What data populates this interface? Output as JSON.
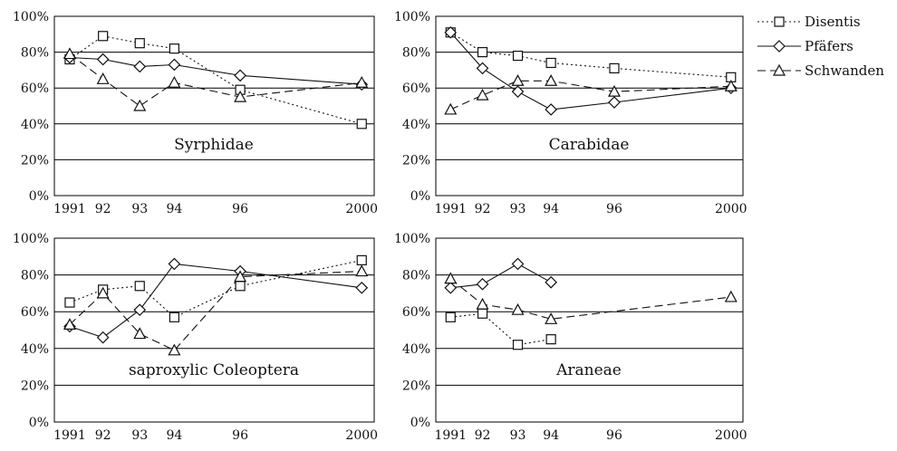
{
  "chart_data": [
    {
      "type": "line",
      "title": "Syrphidae",
      "x": [
        "1991",
        "92",
        "93",
        "94",
        "96",
        "2000"
      ],
      "ylim": [
        0,
        100
      ],
      "yticks": [
        "0%",
        "20%",
        "40%",
        "60%",
        "80%",
        "100%"
      ],
      "grid": true,
      "series": [
        {
          "name": "Disentis",
          "values": [
            76,
            89,
            85,
            82,
            59,
            40
          ]
        },
        {
          "name": "Pfäfers",
          "values": [
            77,
            76,
            72,
            73,
            67,
            62
          ]
        },
        {
          "name": "Schwanden",
          "values": [
            79,
            65,
            50,
            63,
            55,
            63
          ]
        }
      ]
    },
    {
      "type": "line",
      "title": "Carabidae",
      "x": [
        "1991",
        "92",
        "93",
        "94",
        "96",
        "2000"
      ],
      "ylim": [
        0,
        100
      ],
      "yticks": [
        "0%",
        "20%",
        "40%",
        "60%",
        "80%",
        "100%"
      ],
      "grid": true,
      "series": [
        {
          "name": "Disentis",
          "values": [
            91,
            80,
            78,
            74,
            71,
            66
          ]
        },
        {
          "name": "Pfäfers",
          "values": [
            91,
            71,
            58,
            48,
            52,
            60
          ]
        },
        {
          "name": "Schwanden",
          "values": [
            48,
            56,
            64,
            64,
            58,
            61
          ]
        }
      ]
    },
    {
      "type": "line",
      "title": "saproxylic Coleoptera",
      "x": [
        "1991",
        "92",
        "93",
        "94",
        "96",
        "2000"
      ],
      "ylim": [
        0,
        100
      ],
      "yticks": [
        "0%",
        "20%",
        "40%",
        "60%",
        "80%",
        "100%"
      ],
      "grid": true,
      "series": [
        {
          "name": "Disentis",
          "values": [
            65,
            72,
            74,
            57,
            74,
            88
          ]
        },
        {
          "name": "Pfäfers",
          "values": [
            52,
            46,
            61,
            86,
            82,
            73
          ]
        },
        {
          "name": "Schwanden",
          "values": [
            53,
            70,
            48,
            39,
            79,
            82
          ]
        }
      ]
    },
    {
      "type": "line",
      "title": "Araneae",
      "x": [
        "1991",
        "92",
        "93",
        "94",
        "96",
        "2000"
      ],
      "ylim": [
        0,
        100
      ],
      "yticks": [
        "0%",
        "20%",
        "40%",
        "60%",
        "80%",
        "100%"
      ],
      "grid": true,
      "series": [
        {
          "name": "Disentis",
          "values": [
            57,
            59,
            42,
            45,
            null,
            null
          ]
        },
        {
          "name": "Pfäfers",
          "values": [
            73,
            75,
            86,
            76,
            null,
            null
          ]
        },
        {
          "name": "Schwanden",
          "values": [
            78,
            64,
            61,
            56,
            null,
            68
          ]
        }
      ]
    }
  ],
  "legend": {
    "position": "top-right",
    "items": [
      "Disentis",
      "Pfäfers",
      "Schwanden"
    ]
  }
}
